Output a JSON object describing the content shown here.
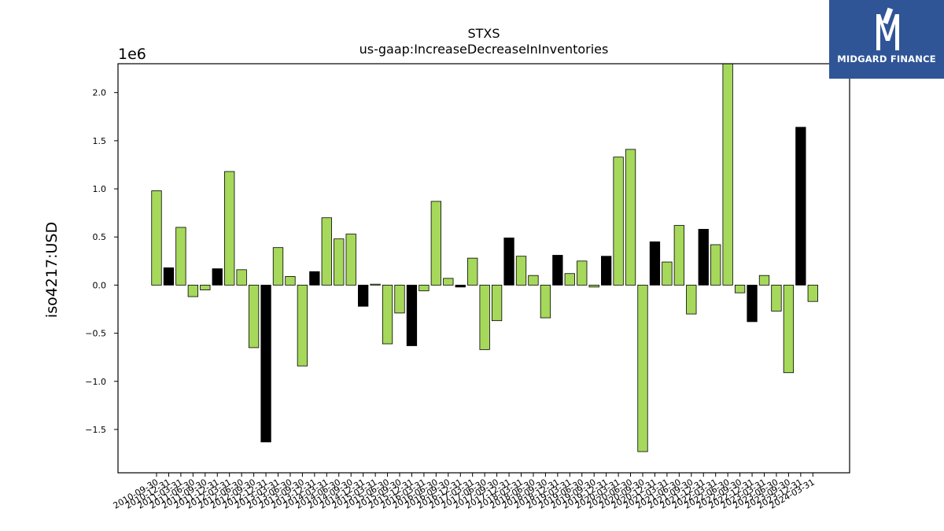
{
  "chart_data": {
    "type": "bar",
    "title": "STXS",
    "subtitle": "us-gaap:IncreaseDecreaseInInventories",
    "ylabel": "iso4217:USD",
    "xlabel": "",
    "y_multiplier_label": "1e6",
    "ylim": [
      -1.95,
      2.3
    ],
    "yticks": [
      2.0,
      1.5,
      1.0,
      0.5,
      0.0,
      -0.5,
      -1.0,
      -1.5
    ],
    "ytick_labels": [
      "2.0",
      "1.5",
      "1.0",
      "0.5",
      "0.0",
      "−0.5",
      "−1.0",
      "−1.5"
    ],
    "grid": false,
    "colors": {
      "regular": "#a6d85b",
      "annual": "#000000",
      "edge": "#000000"
    },
    "categories": [
      "2010-09-30",
      "2010-12-31",
      "2011-03-31",
      "2011-06-30",
      "2011-09-30",
      "2011-12-31",
      "2012-03-31",
      "2012-06-30",
      "2012-09-30",
      "2012-12-31",
      "2013-03-31",
      "2013-06-30",
      "2013-09-30",
      "2013-12-31",
      "2014-03-31",
      "2014-06-30",
      "2014-09-30",
      "2014-12-31",
      "2015-03-31",
      "2015-06-30",
      "2015-09-30",
      "2015-12-31",
      "2016-03-31",
      "2016-06-30",
      "2016-09-30",
      "2016-12-31",
      "2017-03-31",
      "2017-06-30",
      "2017-09-30",
      "2017-12-31",
      "2018-03-31",
      "2018-06-30",
      "2018-09-30",
      "2018-12-31",
      "2019-03-31",
      "2019-06-30",
      "2019-09-30",
      "2019-12-31",
      "2020-03-31",
      "2020-06-30",
      "2020-09-30",
      "2020-12-31",
      "2021-03-31",
      "2021-06-30",
      "2021-09-30",
      "2021-12-31",
      "2022-03-31",
      "2022-06-30",
      "2022-09-30",
      "2022-12-31",
      "2023-03-31",
      "2023-06-30",
      "2023-09-30",
      "2023-12-31",
      "2024-03-31"
    ],
    "values": [
      0.98,
      0.18,
      0.6,
      -0.12,
      -0.05,
      0.17,
      1.18,
      0.16,
      -0.65,
      -1.63,
      0.39,
      0.09,
      -0.84,
      0.14,
      0.7,
      0.48,
      0.53,
      -0.22,
      0.01,
      -0.61,
      -0.29,
      -0.63,
      -0.06,
      0.87,
      0.07,
      -0.02,
      0.28,
      -0.67,
      -0.37,
      0.49,
      0.3,
      0.1,
      -0.34,
      0.31,
      0.12,
      0.25,
      -0.02,
      0.3,
      1.33,
      1.41,
      -1.73,
      0.45,
      0.24,
      0.62,
      -0.3,
      0.58,
      0.42,
      2.3,
      -0.08,
      -0.38,
      0.1,
      -0.27,
      -0.91,
      1.64,
      -0.17
    ],
    "bar_color_keys": [
      "regular",
      "annual",
      "regular",
      "regular",
      "regular",
      "annual",
      "regular",
      "regular",
      "regular",
      "annual",
      "regular",
      "regular",
      "regular",
      "annual",
      "regular",
      "regular",
      "regular",
      "annual",
      "regular",
      "regular",
      "regular",
      "annual",
      "regular",
      "regular",
      "regular",
      "annual",
      "regular",
      "regular",
      "regular",
      "annual",
      "regular",
      "regular",
      "regular",
      "annual",
      "regular",
      "regular",
      "regular",
      "annual",
      "regular",
      "regular",
      "regular",
      "annual",
      "regular",
      "regular",
      "regular",
      "annual",
      "regular",
      "regular",
      "regular",
      "annual",
      "regular",
      "regular",
      "regular",
      "annual",
      "regular"
    ]
  },
  "logo": {
    "text": "MIDGARD FINANCE",
    "background": "#2f5597"
  }
}
